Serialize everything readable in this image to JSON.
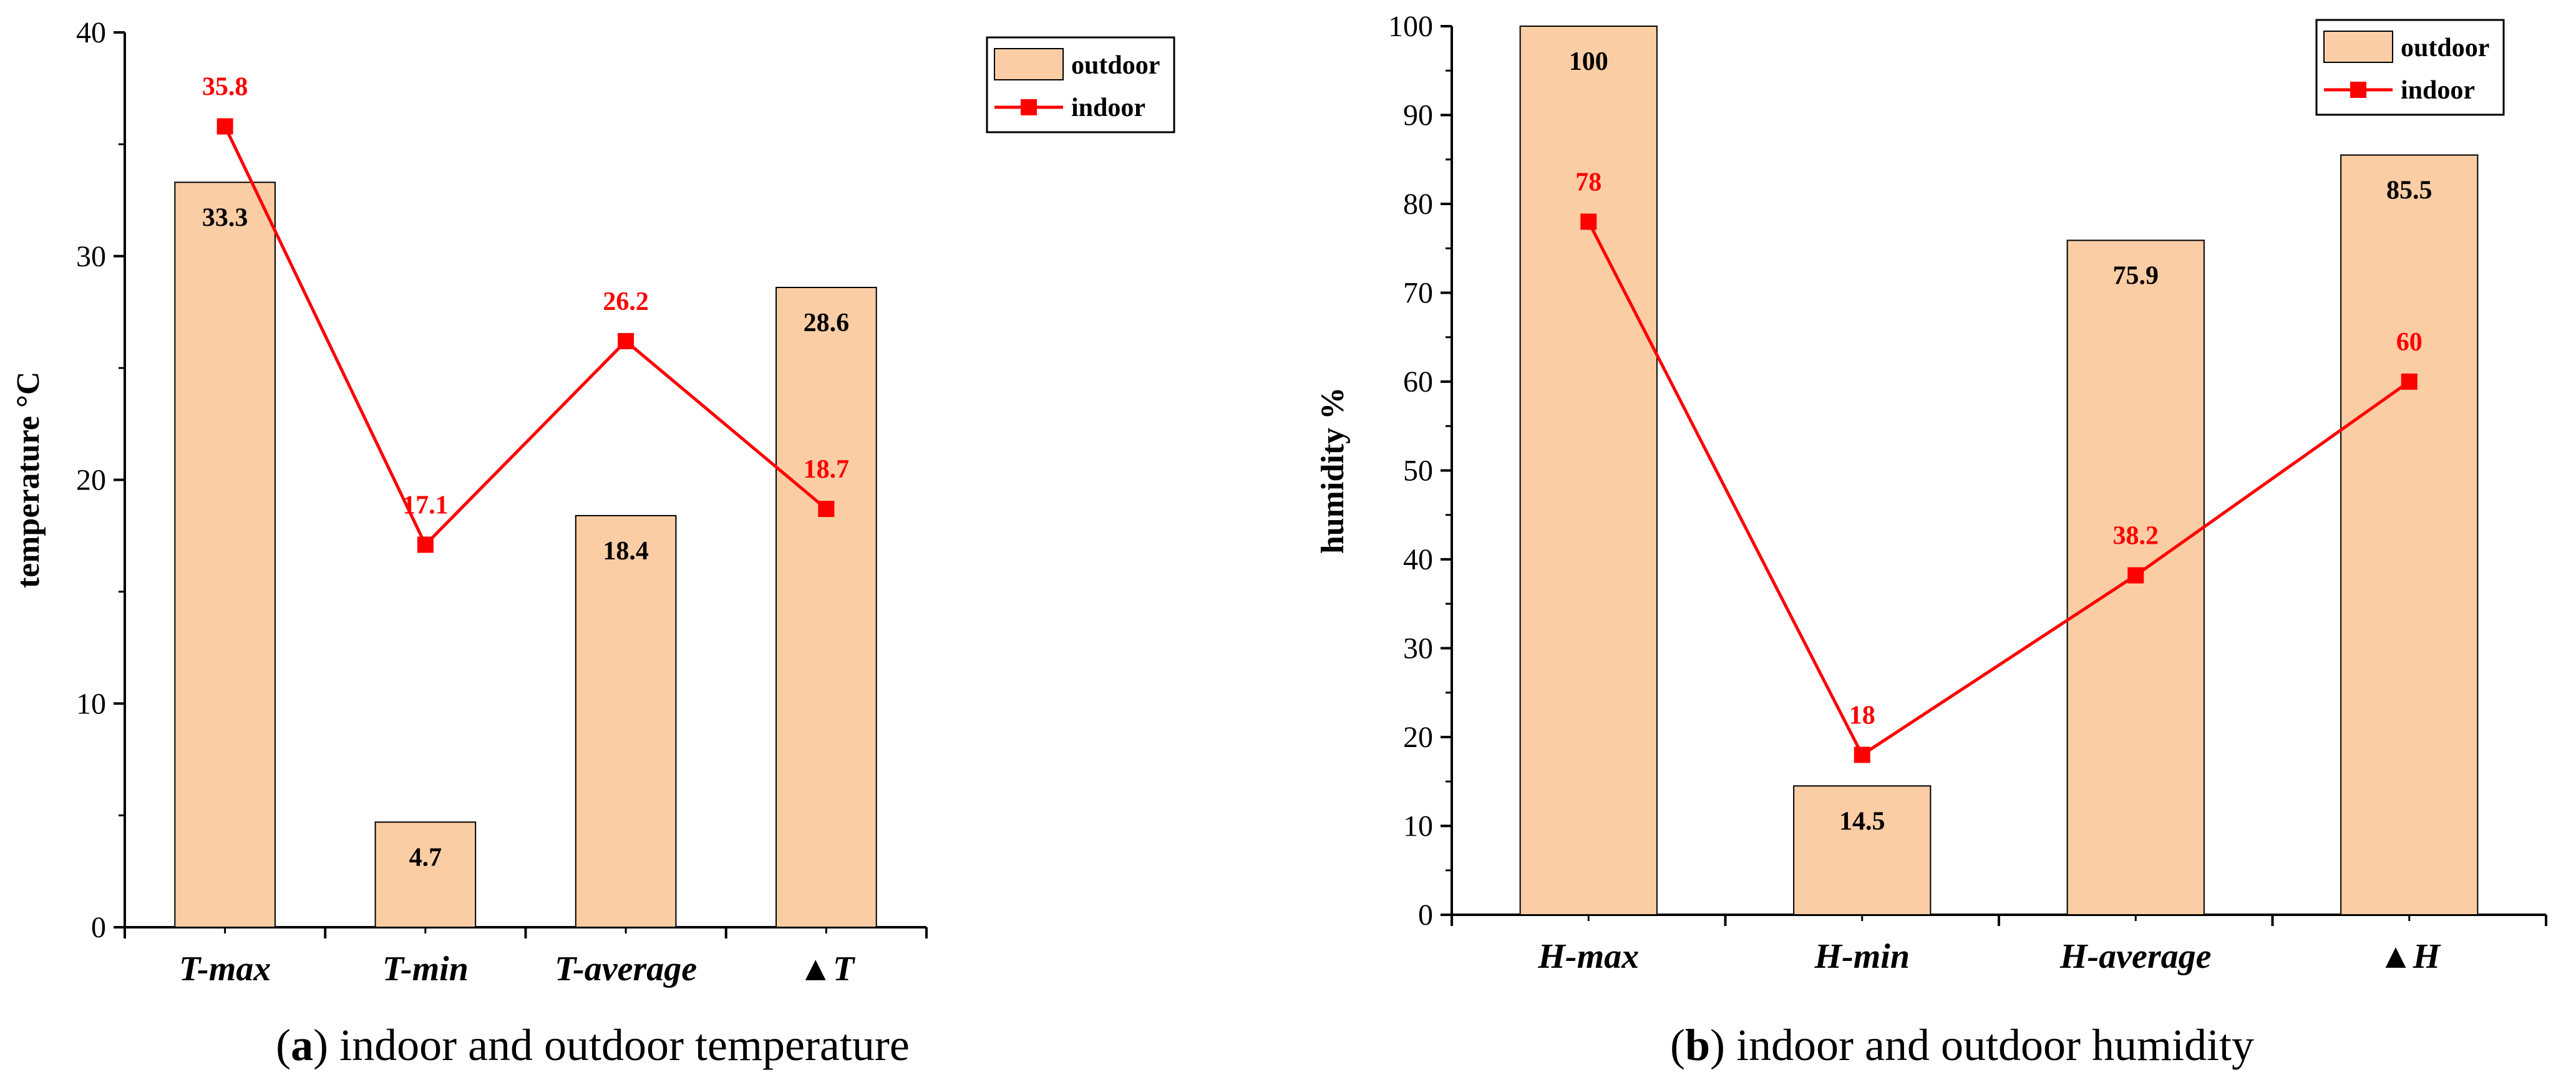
{
  "chart_data": [
    {
      "type": "bar",
      "title": "",
      "xlabel": "",
      "ylabel": "temperature °C",
      "ylim": [
        0,
        40
      ],
      "yticks": [
        0,
        10,
        20,
        30,
        40
      ],
      "categories": [
        "T-max",
        "T-min",
        "T-average",
        "▲T"
      ],
      "series": [
        {
          "name": "outdoor",
          "kind": "bar",
          "values": [
            33.3,
            4.7,
            18.4,
            28.6
          ],
          "labels": [
            "33.3",
            "4.7",
            "18.4",
            "28.6"
          ],
          "color": "#fbcda5"
        },
        {
          "name": "indoor",
          "kind": "line",
          "values": [
            35.8,
            17.1,
            26.2,
            18.7
          ],
          "labels": [
            "35.8",
            "17.1",
            "26.2",
            "18.7"
          ],
          "color": "#ff0000"
        }
      ],
      "legend": "top-right",
      "caption_letter": "a",
      "caption_text": ") indoor and outdoor temperature"
    },
    {
      "type": "bar",
      "title": "",
      "xlabel": "",
      "ylabel": "humidity %",
      "ylim": [
        0,
        100
      ],
      "yticks": [
        0,
        10,
        20,
        30,
        40,
        50,
        60,
        70,
        80,
        90,
        100
      ],
      "categories": [
        "H-max",
        "H-min",
        "H-average",
        "▲H"
      ],
      "series": [
        {
          "name": "outdoor",
          "kind": "bar",
          "values": [
            100,
            14.5,
            75.9,
            85.5
          ],
          "labels": [
            "100",
            "14.5",
            "75.9",
            "85.5"
          ],
          "color": "#fbcda5"
        },
        {
          "name": "indoor",
          "kind": "line",
          "values": [
            78,
            18,
            38.2,
            60
          ],
          "labels": [
            "78",
            "18",
            "38.2",
            "60"
          ],
          "color": "#ff0000"
        }
      ],
      "legend": "top-right",
      "caption_letter": "b",
      "caption_text": ") indoor and outdoor humidity"
    }
  ]
}
